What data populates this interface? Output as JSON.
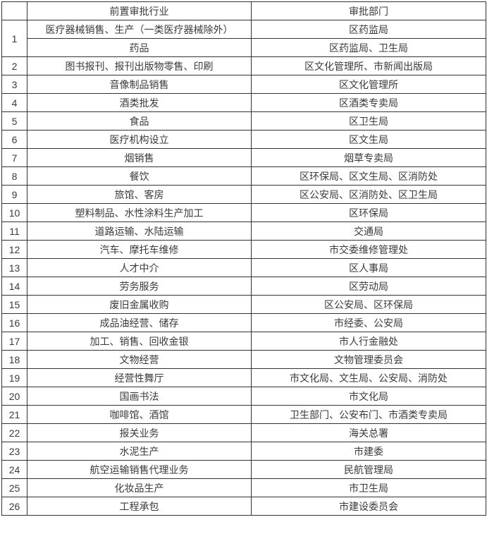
{
  "table": {
    "header": {
      "num": "",
      "industry": "前置审批行业",
      "department": "审批部门"
    },
    "rows": [
      {
        "num": "1",
        "entries": [
          {
            "industry": "医疗器械销售、生产（一类医疗器械除外）",
            "department": "区药监局"
          },
          {
            "industry": "药品",
            "department": "区药监局、卫生局"
          }
        ]
      },
      {
        "num": "2",
        "entries": [
          {
            "industry": "图书报刊、报刊出版物零售、印刷",
            "department": "区文化管理所、市新闻出版局"
          }
        ]
      },
      {
        "num": "3",
        "entries": [
          {
            "industry": "音像制品销售",
            "department": "区文化管理所"
          }
        ]
      },
      {
        "num": "4",
        "entries": [
          {
            "industry": "酒类批发",
            "department": "区酒类专卖局"
          }
        ]
      },
      {
        "num": "5",
        "entries": [
          {
            "industry": "食品",
            "department": "区卫生局"
          }
        ]
      },
      {
        "num": "6",
        "entries": [
          {
            "industry": "医疗机构设立",
            "department": "区文生局"
          }
        ]
      },
      {
        "num": "7",
        "entries": [
          {
            "industry": "烟销售",
            "department": "烟草专卖局"
          }
        ]
      },
      {
        "num": "8",
        "entries": [
          {
            "industry": "餐饮",
            "department": "区环保局、区文生局、区消防处"
          }
        ]
      },
      {
        "num": "9",
        "entries": [
          {
            "industry": "旅馆、客房",
            "department": "区公安局、区消防处、区卫生局"
          }
        ]
      },
      {
        "num": "10",
        "entries": [
          {
            "industry": "塑料制品、水性涂料生产加工",
            "department": "区环保局"
          }
        ]
      },
      {
        "num": "11",
        "entries": [
          {
            "industry": "道路运输、水陆运输",
            "department": "交通局"
          }
        ]
      },
      {
        "num": "12",
        "entries": [
          {
            "industry": "汽车、摩托车维修",
            "department": "市交委维修管理处"
          }
        ]
      },
      {
        "num": "13",
        "entries": [
          {
            "industry": "人才中介",
            "department": "区人事局"
          }
        ]
      },
      {
        "num": "14",
        "entries": [
          {
            "industry": "劳务服务",
            "department": "区劳动局"
          }
        ]
      },
      {
        "num": "15",
        "entries": [
          {
            "industry": "废旧金属收购",
            "department": "区公安局、区环保局"
          }
        ]
      },
      {
        "num": "16",
        "entries": [
          {
            "industry": "成品油经营、储存",
            "department": "市经委、公安局"
          }
        ]
      },
      {
        "num": "17",
        "entries": [
          {
            "industry": "加工、销售、回收金银",
            "department": "市人行金融处"
          }
        ]
      },
      {
        "num": "18",
        "entries": [
          {
            "industry": "文物经营",
            "department": "文物管理委员会"
          }
        ]
      },
      {
        "num": "19",
        "entries": [
          {
            "industry": "经营性舞厅",
            "department": "市文化局、文生局、公安局、消防处"
          }
        ]
      },
      {
        "num": "20",
        "entries": [
          {
            "industry": "国画书法",
            "department": "市文化局"
          }
        ]
      },
      {
        "num": "21",
        "entries": [
          {
            "industry": "咖啡馆、酒馆",
            "department": "卫生部门、公安布门、市酒类专卖局"
          }
        ]
      },
      {
        "num": "22",
        "entries": [
          {
            "industry": "报关业务",
            "department": "海关总署"
          }
        ]
      },
      {
        "num": "23",
        "entries": [
          {
            "industry": "水泥生产",
            "department": "市建委"
          }
        ]
      },
      {
        "num": "24",
        "entries": [
          {
            "industry": "航空运输销售代理业务",
            "department": "民航管理局"
          }
        ]
      },
      {
        "num": "25",
        "entries": [
          {
            "industry": "化妆品生产",
            "department": "市卫生局"
          }
        ]
      },
      {
        "num": "26",
        "entries": [
          {
            "industry": "工程承包",
            "department": "市建设委员会"
          }
        ]
      }
    ]
  }
}
